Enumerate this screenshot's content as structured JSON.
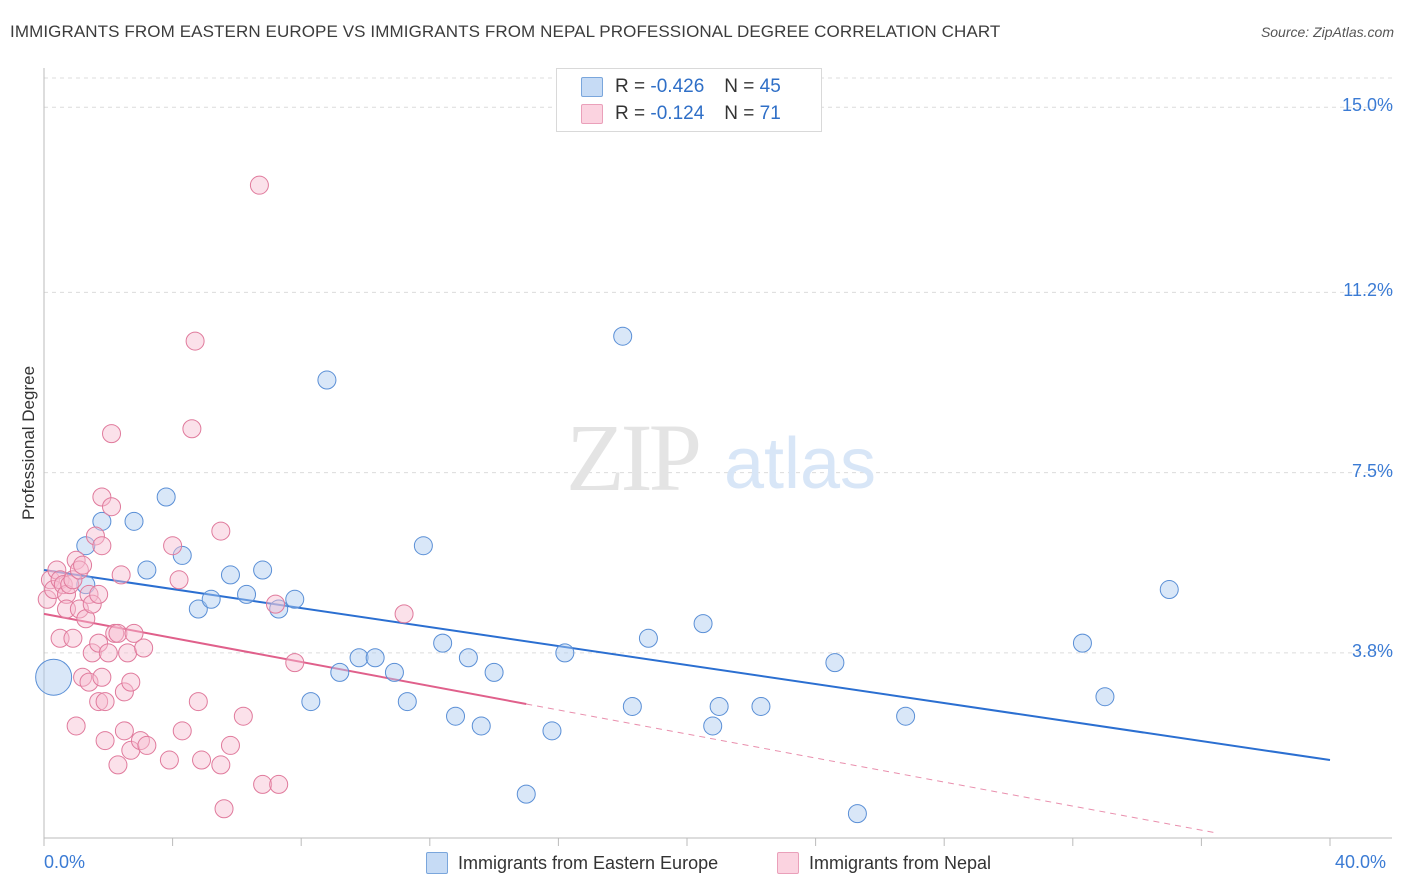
{
  "header": {
    "title": "IMMIGRANTS FROM EASTERN EUROPE VS IMMIGRANTS FROM NEPAL PROFESSIONAL DEGREE CORRELATION CHART",
    "source": "Source: ZipAtlas.com"
  },
  "watermark": {
    "zip": "ZIP",
    "atlas": "atlas"
  },
  "legend": {
    "rows": [
      {
        "r_label": "R =",
        "r_value": "-0.426",
        "n_label": "N =",
        "n_value": "45",
        "color": "#a8c8f0"
      },
      {
        "r_label": "R =",
        "r_value": "-0.124",
        "n_label": "N =",
        "n_value": "71",
        "color": "#f6b8cc"
      }
    ]
  },
  "colors": {
    "blue_fill": "#aac9ef",
    "blue_stroke": "#5a8fd6",
    "blue_line": "#2b6fd1",
    "pink_fill": "#f6bcd0",
    "pink_stroke": "#e07a9c",
    "pink_line": "#e0608b",
    "axis_text": "#3b7bd4",
    "grid": "#dcdcdc"
  },
  "chart_data": {
    "type": "scatter",
    "title": "IMMIGRANTS FROM EASTERN EUROPE VS IMMIGRANTS FROM NEPAL PROFESSIONAL DEGREE CORRELATION CHART",
    "xlabel": "",
    "ylabel": "Professional Degree",
    "xlim": [
      0,
      40
    ],
    "ylim": [
      0,
      15.6
    ],
    "x_tick_labels": [
      "0.0%",
      "40.0%"
    ],
    "y_ticks": [
      {
        "value": 3.8,
        "label": "3.8%"
      },
      {
        "value": 7.5,
        "label": "7.5%"
      },
      {
        "value": 11.2,
        "label": "11.2%"
      },
      {
        "value": 15.0,
        "label": "15.0%"
      }
    ],
    "grid": true,
    "series": [
      {
        "name": "Immigrants from Eastern Europe",
        "color": "blue",
        "trend": {
          "x0": 0,
          "y0": 5.5,
          "x1": 40,
          "y1": 1.6,
          "solid_to": 40
        },
        "points": [
          [
            0.3,
            3.3,
            18
          ],
          [
            1.3,
            5.2,
            9
          ],
          [
            1.3,
            6.0,
            9
          ],
          [
            1.8,
            6.5,
            9
          ],
          [
            2.8,
            6.5,
            9
          ],
          [
            3.2,
            5.5,
            9
          ],
          [
            3.8,
            7.0,
            9
          ],
          [
            4.3,
            5.8,
            9
          ],
          [
            4.8,
            4.7,
            9
          ],
          [
            5.2,
            4.9,
            9
          ],
          [
            5.8,
            5.4,
            9
          ],
          [
            6.3,
            5.0,
            9
          ],
          [
            6.8,
            5.5,
            9
          ],
          [
            7.3,
            4.7,
            9
          ],
          [
            7.8,
            4.9,
            9
          ],
          [
            8.3,
            2.8,
            9
          ],
          [
            8.8,
            9.4,
            9
          ],
          [
            9.2,
            3.4,
            9
          ],
          [
            9.8,
            3.7,
            9
          ],
          [
            10.3,
            3.7,
            9
          ],
          [
            10.9,
            3.4,
            9
          ],
          [
            11.3,
            2.8,
            9
          ],
          [
            11.8,
            6.0,
            9
          ],
          [
            12.4,
            4.0,
            9
          ],
          [
            12.8,
            2.5,
            9
          ],
          [
            13.2,
            3.7,
            9
          ],
          [
            13.6,
            2.3,
            9
          ],
          [
            14.0,
            3.4,
            9
          ],
          [
            15.0,
            0.9,
            9
          ],
          [
            15.8,
            2.2,
            9
          ],
          [
            16.2,
            3.8,
            9
          ],
          [
            18.0,
            10.3,
            9
          ],
          [
            18.3,
            2.7,
            9
          ],
          [
            18.8,
            4.1,
            9
          ],
          [
            20.5,
            4.4,
            9
          ],
          [
            20.8,
            2.3,
            9
          ],
          [
            21.0,
            2.7,
            9
          ],
          [
            22.3,
            2.7,
            9
          ],
          [
            24.6,
            3.6,
            9
          ],
          [
            25.3,
            0.5,
            9
          ],
          [
            26.8,
            2.5,
            9
          ],
          [
            32.3,
            4.0,
            9
          ],
          [
            33.0,
            2.9,
            9
          ],
          [
            35.0,
            5.1,
            9
          ]
        ]
      },
      {
        "name": "Immigrants from Nepal",
        "color": "pink",
        "trend": {
          "x0": 0,
          "y0": 4.6,
          "x1": 36.5,
          "y1": 0.1,
          "solid_to": 15
        },
        "points": [
          [
            0.1,
            4.9,
            9
          ],
          [
            0.2,
            5.3,
            9
          ],
          [
            0.3,
            5.1,
            9
          ],
          [
            0.4,
            5.5,
            9
          ],
          [
            0.5,
            5.3,
            9
          ],
          [
            0.6,
            5.2,
            9
          ],
          [
            0.7,
            5.0,
            9
          ],
          [
            0.8,
            5.2,
            9
          ],
          [
            0.9,
            5.3,
            9
          ],
          [
            1.0,
            5.7,
            9
          ],
          [
            1.1,
            5.5,
            9
          ],
          [
            1.2,
            5.6,
            9
          ],
          [
            0.5,
            4.1,
            9
          ],
          [
            0.7,
            4.7,
            9
          ],
          [
            0.9,
            4.1,
            9
          ],
          [
            1.0,
            2.3,
            9
          ],
          [
            1.1,
            4.7,
            9
          ],
          [
            1.2,
            3.3,
            9
          ],
          [
            1.3,
            4.5,
            9
          ],
          [
            1.4,
            3.2,
            9
          ],
          [
            1.4,
            5.0,
            9
          ],
          [
            1.5,
            3.8,
            9
          ],
          [
            1.5,
            4.8,
            9
          ],
          [
            1.6,
            6.2,
            9
          ],
          [
            1.7,
            4.0,
            9
          ],
          [
            1.7,
            5.0,
            9
          ],
          [
            1.7,
            2.8,
            9
          ],
          [
            1.8,
            7.0,
            9
          ],
          [
            1.8,
            3.3,
            9
          ],
          [
            1.8,
            6.0,
            9
          ],
          [
            1.9,
            2.8,
            9
          ],
          [
            1.9,
            2.0,
            9
          ],
          [
            2.0,
            3.8,
            9
          ],
          [
            2.1,
            6.8,
            9
          ],
          [
            2.1,
            8.3,
            9
          ],
          [
            2.2,
            4.2,
            9
          ],
          [
            2.3,
            4.2,
            9
          ],
          [
            2.3,
            1.5,
            9
          ],
          [
            2.4,
            5.4,
            9
          ],
          [
            2.5,
            2.2,
            9
          ],
          [
            2.5,
            3.0,
            9
          ],
          [
            2.6,
            3.8,
            9
          ],
          [
            2.7,
            3.2,
            9
          ],
          [
            2.7,
            1.8,
            9
          ],
          [
            2.8,
            4.2,
            9
          ],
          [
            3.0,
            2.0,
            9
          ],
          [
            3.1,
            3.9,
            9
          ],
          [
            3.2,
            1.9,
            9
          ],
          [
            3.9,
            1.6,
            9
          ],
          [
            4.0,
            6.0,
            9
          ],
          [
            4.2,
            5.3,
            9
          ],
          [
            4.3,
            2.2,
            9
          ],
          [
            4.6,
            8.4,
            9
          ],
          [
            4.7,
            10.2,
            9
          ],
          [
            4.8,
            2.8,
            9
          ],
          [
            4.9,
            1.6,
            9
          ],
          [
            5.5,
            1.5,
            9
          ],
          [
            5.5,
            6.3,
            9
          ],
          [
            5.6,
            0.6,
            9
          ],
          [
            5.8,
            1.9,
            9
          ],
          [
            6.2,
            2.5,
            9
          ],
          [
            6.7,
            13.4,
            9
          ],
          [
            6.8,
            1.1,
            9
          ],
          [
            7.2,
            4.8,
            9
          ],
          [
            7.3,
            1.1,
            9
          ],
          [
            7.8,
            3.6,
            9
          ],
          [
            11.2,
            4.6,
            9
          ]
        ]
      }
    ]
  },
  "bottom_legend": {
    "items": [
      {
        "label": "Immigrants from Eastern Europe",
        "color": "#aac9ef"
      },
      {
        "label": "Immigrants from Nepal",
        "color": "#f6bcd0"
      }
    ]
  }
}
